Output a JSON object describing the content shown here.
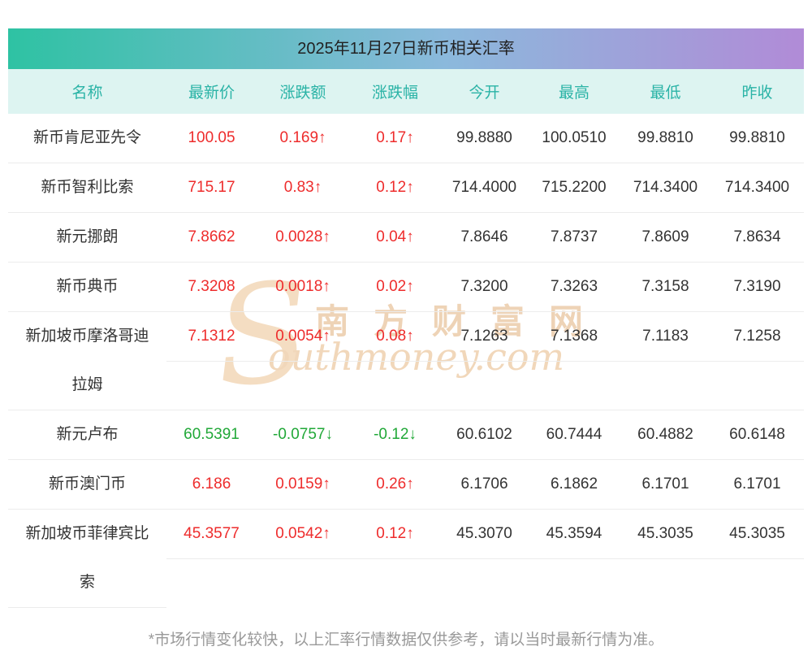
{
  "chart_data": {
    "type": "table",
    "title": "2025年11月27日新币相关汇率",
    "columns": [
      "名称",
      "最新价",
      "涨跌额",
      "涨跌幅",
      "今开",
      "最高",
      "最低",
      "昨收"
    ],
    "rows": [
      {
        "name": "新币肯尼亚先令",
        "latest": "100.05",
        "change": "0.169↑",
        "pct": "0.17↑",
        "open": "99.8880",
        "high": "100.0510",
        "low": "99.8810",
        "prev": "99.8810",
        "trend": "up",
        "tall": false
      },
      {
        "name": "新币智利比索",
        "latest": "715.17",
        "change": "0.83↑",
        "pct": "0.12↑",
        "open": "714.4000",
        "high": "715.2200",
        "low": "714.3400",
        "prev": "714.3400",
        "trend": "up",
        "tall": false
      },
      {
        "name": "新元挪朗",
        "latest": "7.8662",
        "change": "0.0028↑",
        "pct": "0.04↑",
        "open": "7.8646",
        "high": "7.8737",
        "low": "7.8609",
        "prev": "7.8634",
        "trend": "up",
        "tall": false
      },
      {
        "name": "新币典币",
        "latest": "7.3208",
        "change": "0.0018↑",
        "pct": "0.02↑",
        "open": "7.3200",
        "high": "7.3263",
        "low": "7.3158",
        "prev": "7.3190",
        "trend": "up",
        "tall": false
      },
      {
        "name": "新加坡币摩洛哥迪拉姆",
        "latest": "7.1312",
        "change": "0.0054↑",
        "pct": "0.08↑",
        "open": "7.1263",
        "high": "7.1368",
        "low": "7.1183",
        "prev": "7.1258",
        "trend": "up",
        "tall": true
      },
      {
        "name": "新元卢布",
        "latest": "60.5391",
        "change": "-0.0757↓",
        "pct": "-0.12↓",
        "open": "60.6102",
        "high": "60.7444",
        "low": "60.4882",
        "prev": "60.6148",
        "trend": "down",
        "tall": false
      },
      {
        "name": "新币澳门币",
        "latest": "6.186",
        "change": "0.0159↑",
        "pct": "0.26↑",
        "open": "6.1706",
        "high": "6.1862",
        "low": "6.1701",
        "prev": "6.1701",
        "trend": "up",
        "tall": false
      },
      {
        "name": "新加坡币菲律宾比索",
        "latest": "45.3577",
        "change": "0.0542↑",
        "pct": "0.12↑",
        "open": "45.3070",
        "high": "45.3594",
        "low": "45.3035",
        "prev": "45.3035",
        "trend": "up",
        "tall": true
      }
    ]
  },
  "watermark": {
    "initial": "S",
    "cn": "南方财富网",
    "en": "outhmoney.com"
  },
  "footer": "*市场行情变化较快，以上汇率行情数据仅供参考，请以当时最新行情为准。",
  "colors": {
    "up": "#ee2c2c",
    "down": "#21a838",
    "header_text": "#2ab3a6",
    "header_bg": "#ddf4f1",
    "title_gradient_left": "#2ec2a3",
    "title_gradient_right": "#b18bd7",
    "border": "#ececec",
    "watermark": "#eed3b6"
  }
}
